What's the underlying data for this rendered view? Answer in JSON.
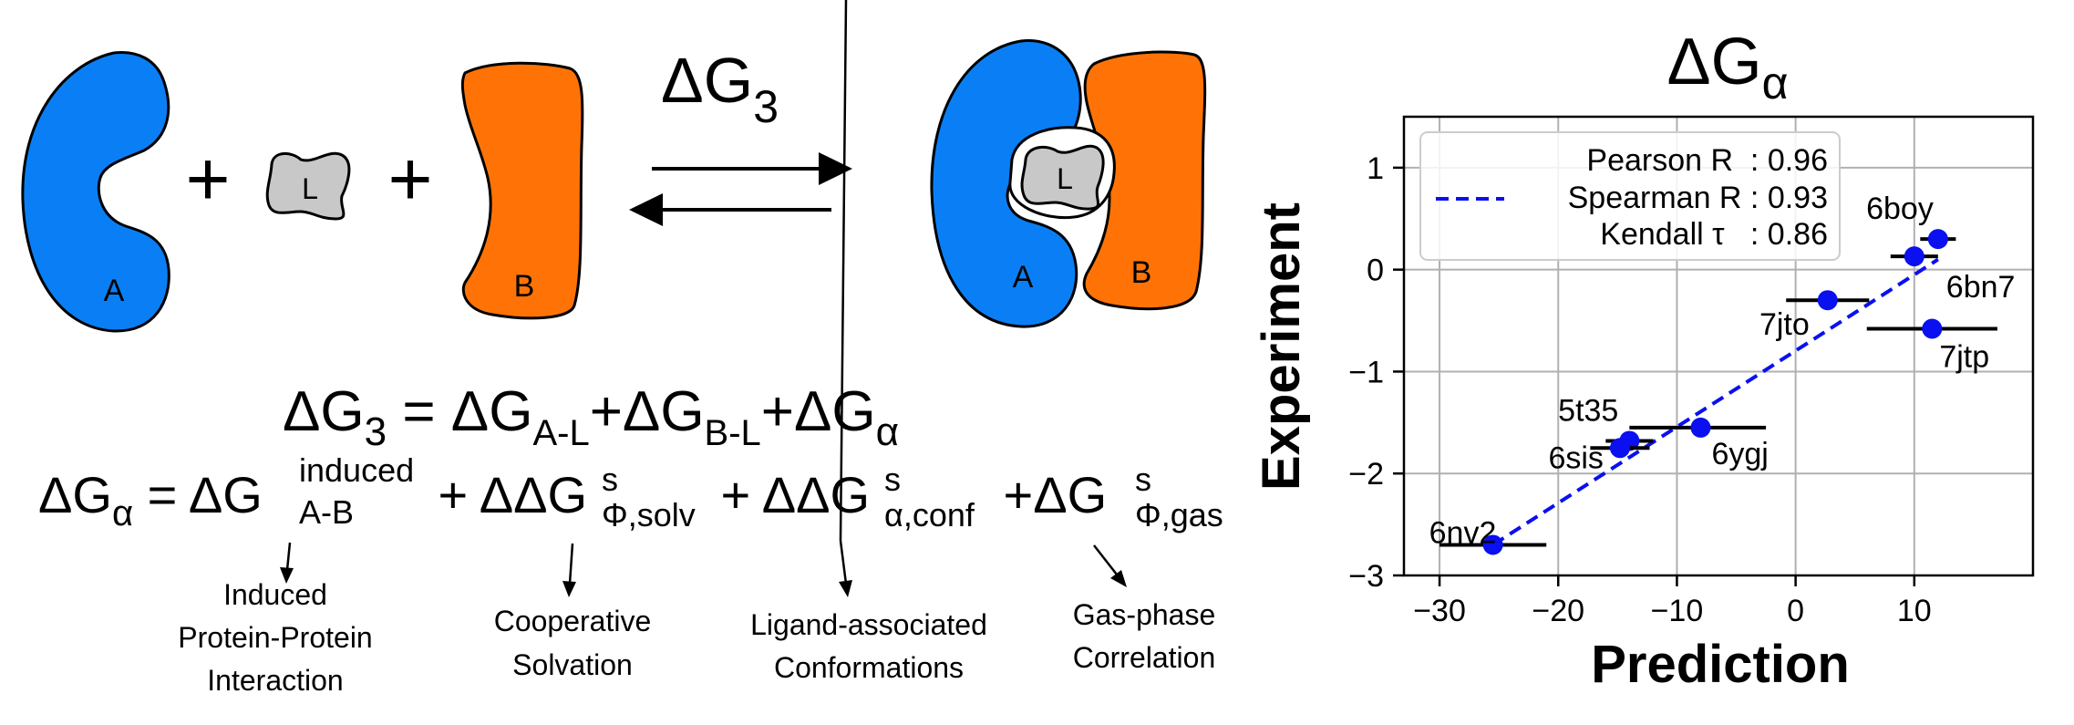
{
  "diagram": {
    "protein_a_label": "A",
    "protein_b_label": "B",
    "ligand_label": "L",
    "plus": "+",
    "reaction_symbol": "ΔG",
    "reaction_sub": "3",
    "complex_a_label": "A",
    "complex_b_label": "B",
    "complex_l_label": "L",
    "colors": {
      "protein_a": "#0a7ff5",
      "protein_b": "#ff7306",
      "ligand": "#c8c8c8"
    }
  },
  "equations": {
    "eq1": {
      "lhs": "ΔG",
      "lhs_sub": "3",
      "eq": " = ",
      "t1": "ΔG",
      "t1_sub": "A-L",
      "plus1": "+",
      "t2": "ΔG",
      "t2_sub": "B-L",
      "plus2": "+",
      "t3": "ΔG",
      "t3_sub": "α"
    },
    "eq2": {
      "lhs": "ΔG",
      "lhs_sub": "α",
      "eq": " = ",
      "t1": "ΔG",
      "t1_sup": "induced",
      "t1_sub": "A-B",
      "plus1": " + ",
      "t2": "ΔΔG",
      "t2_sup": "s",
      "t2_sub": "Φ,solv",
      "plus2": " + ",
      "t3": "ΔΔG",
      "t3_sup": "s",
      "t3_sub": "α,conf",
      "plus3": " +",
      "t4": "ΔG",
      "t4_sup": "s",
      "t4_sub": "Φ,gas"
    }
  },
  "annotations": [
    {
      "lines": [
        "Induced",
        "Protein-Protein",
        "Interaction"
      ]
    },
    {
      "lines": [
        "Cooperative",
        "Solvation"
      ]
    },
    {
      "lines": [
        "Ligand-associated",
        "Conformations"
      ]
    },
    {
      "lines": [
        "Gas-phase",
        "Correlation"
      ]
    }
  ],
  "chart_data": {
    "type": "scatter",
    "title": "ΔG",
    "title_sub": "α",
    "xlabel": "Prediction",
    "ylabel": "Experiment",
    "xlim": [
      -33,
      20
    ],
    "ylim": [
      -3,
      1.5
    ],
    "xticks": [
      -30,
      -20,
      -10,
      0,
      10
    ],
    "xtick_labels": [
      "−30",
      "−20",
      "−10",
      "0",
      "10"
    ],
    "yticks": [
      -3,
      -2,
      -1,
      0,
      1
    ],
    "ytick_labels": [
      "−3",
      "−2",
      "−1",
      "0",
      "1"
    ],
    "grid": true,
    "points": [
      {
        "label": "6boy",
        "x": 12.0,
        "y": 0.3,
        "xerr_low": 1.5,
        "xerr_high": 1.5
      },
      {
        "label": "6bn7",
        "x": 10.0,
        "y": 0.13,
        "xerr_low": 2.0,
        "xerr_high": 2.0
      },
      {
        "label": "7jto",
        "x": 2.7,
        "y": -0.3,
        "xerr_low": 3.5,
        "xerr_high": 3.5
      },
      {
        "label": "7jtp",
        "x": 11.5,
        "y": -0.58,
        "xerr_low": 5.5,
        "xerr_high": 5.5
      },
      {
        "label": "6ygj",
        "x": -8.0,
        "y": -1.55,
        "xerr_low": 6.0,
        "xerr_high": 5.5
      },
      {
        "label": "5t35",
        "x": -14.0,
        "y": -1.68,
        "xerr_low": 2.0,
        "xerr_high": 2.0
      },
      {
        "label": "6sis",
        "x": -14.8,
        "y": -1.75,
        "xerr_low": 2.5,
        "xerr_high": 2.5
      },
      {
        "label": "6nv2",
        "x": -25.5,
        "y": -2.7,
        "xerr_low": 4.5,
        "xerr_high": 4.5
      }
    ],
    "fit_line": {
      "x": [
        -25.5,
        12.0
      ],
      "y": [
        -2.7,
        0.1
      ]
    },
    "legend": {
      "lines": [
        "Pearson R  : 0.96",
        "Spearman R : 0.93",
        "Kendall τ   : 0.86"
      ],
      "position": "top-left"
    },
    "point_color": "#0a10f0",
    "line_color": "#0a10f0"
  }
}
